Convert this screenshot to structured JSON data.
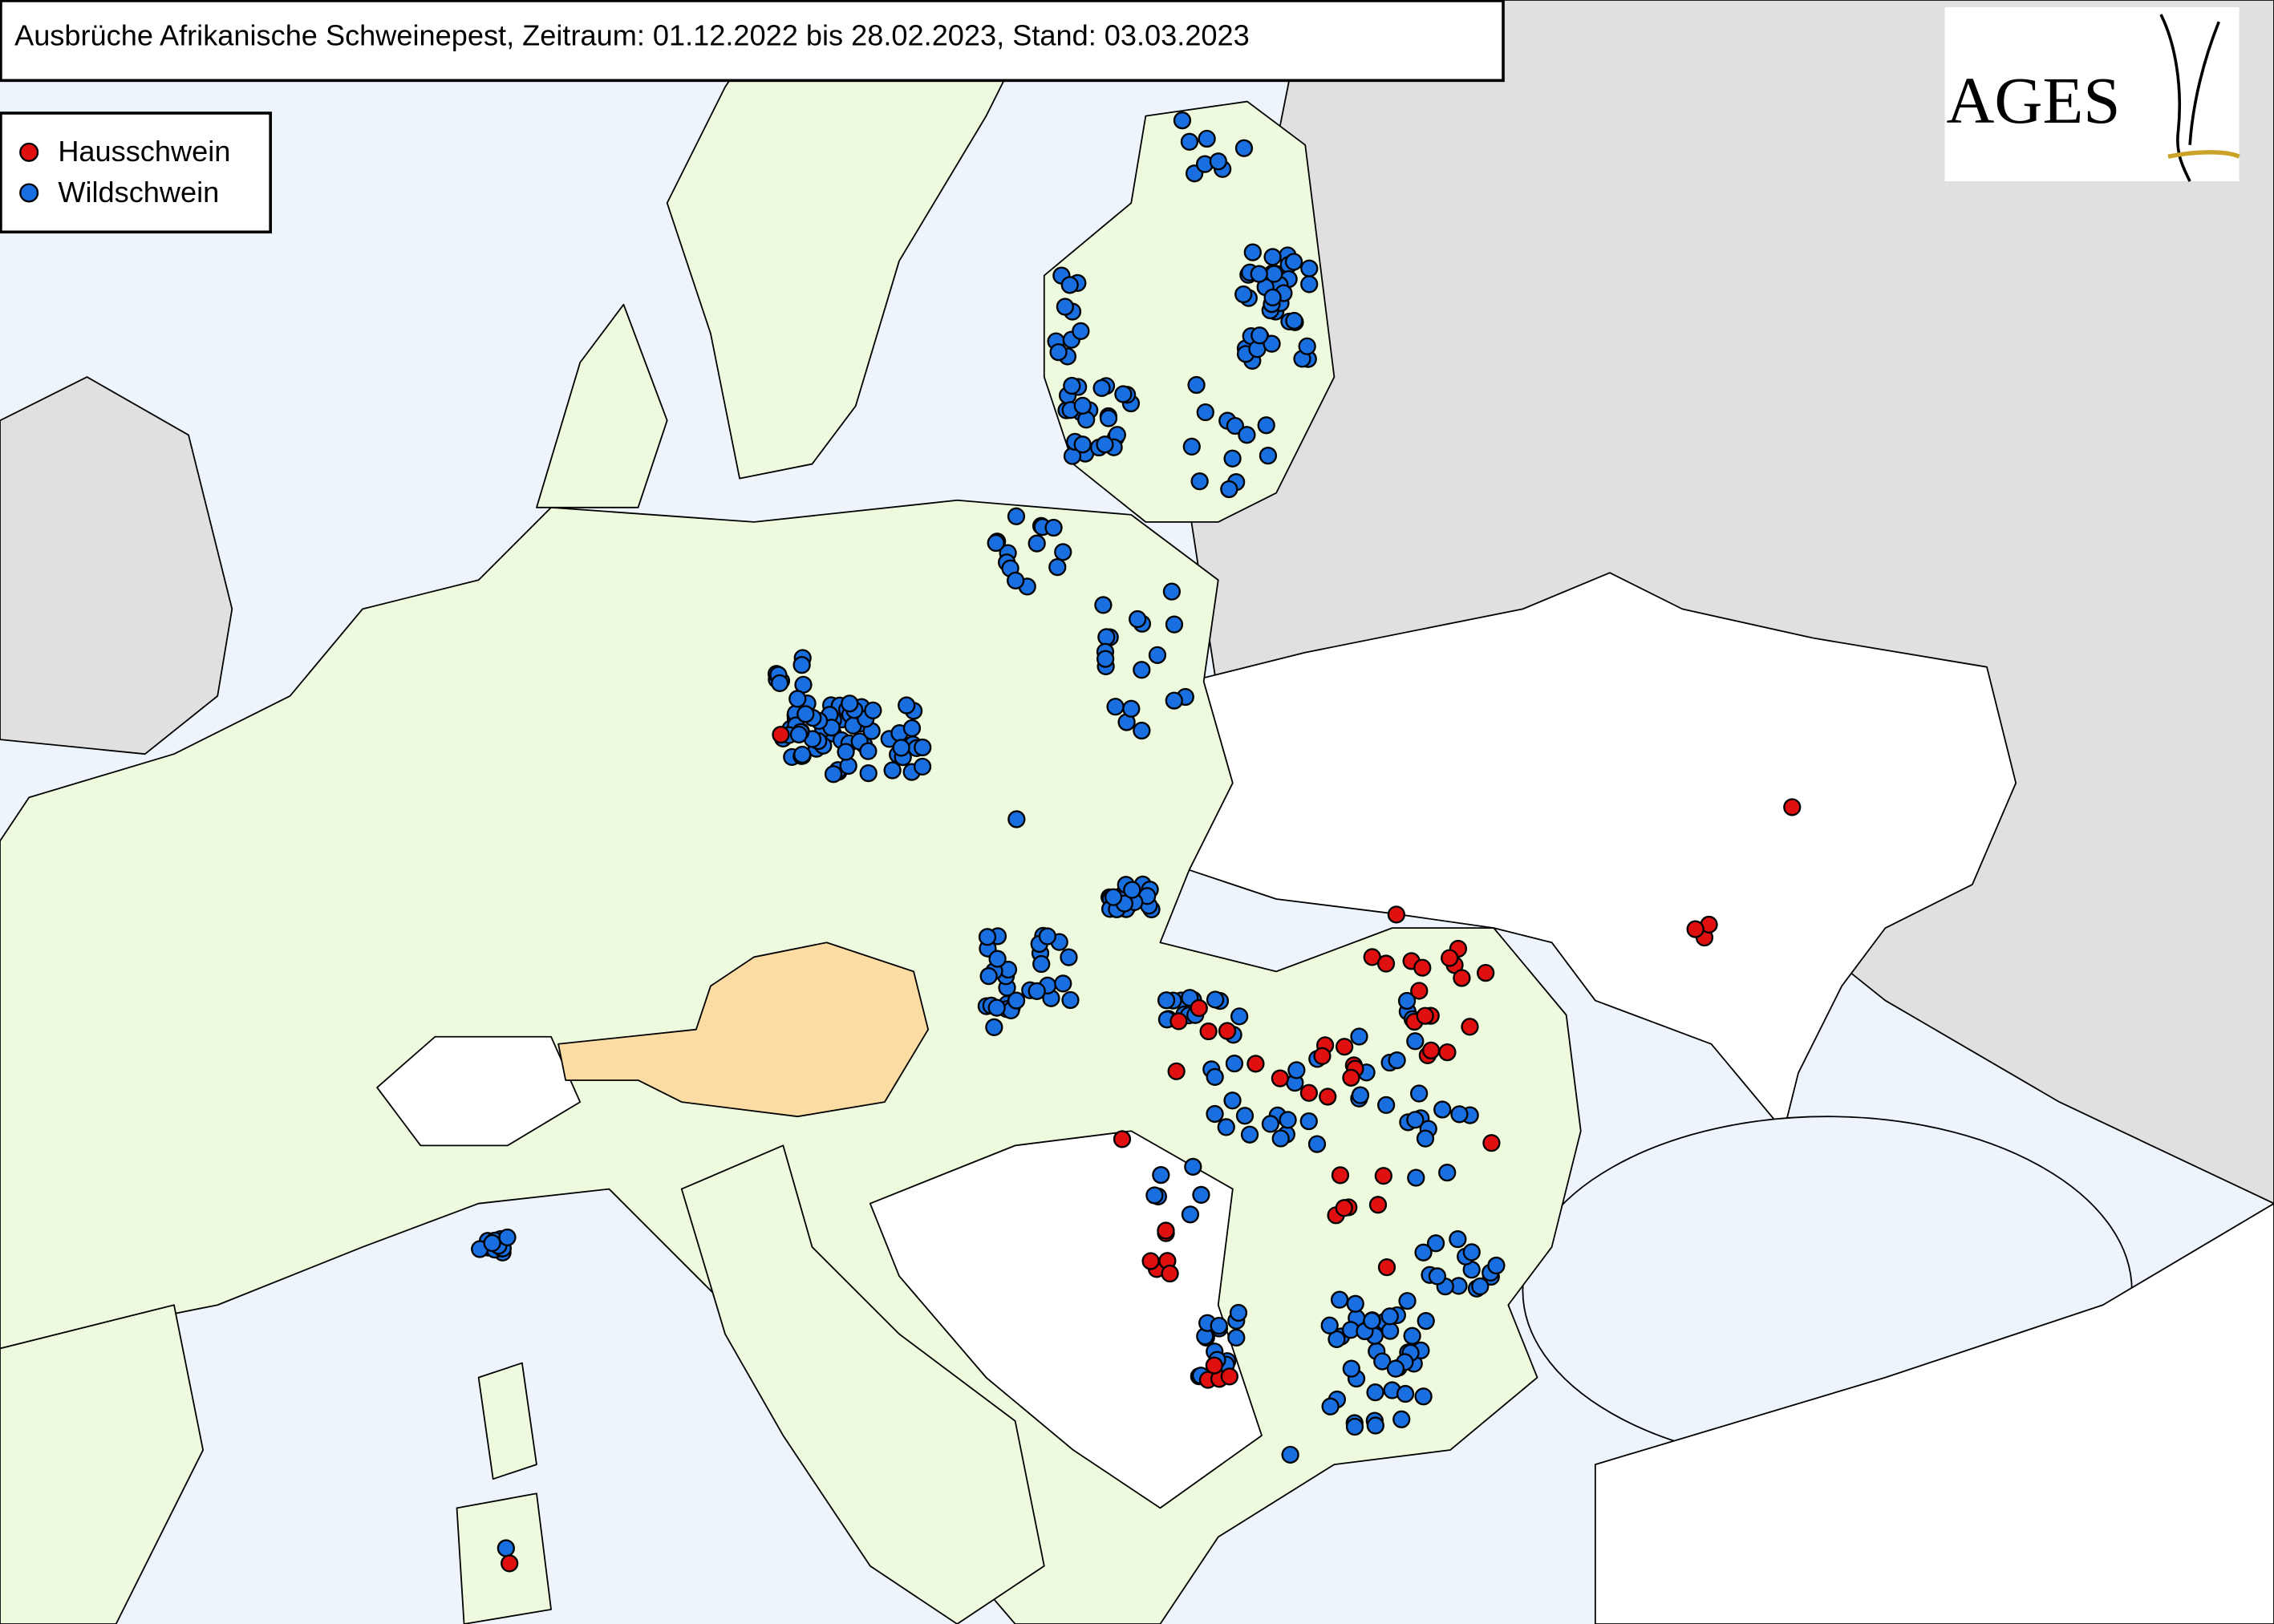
{
  "header": {
    "title": "Ausbrüche Afrikanische Schweinepest, Zeitraum: 01.12.2022 bis 28.02.2023, Stand: 03.03.2023"
  },
  "legend": {
    "items": [
      {
        "label": "Hausschwein"
      },
      {
        "label": "Wildschwein"
      }
    ]
  },
  "logo": {
    "text": "AGES"
  }
}
